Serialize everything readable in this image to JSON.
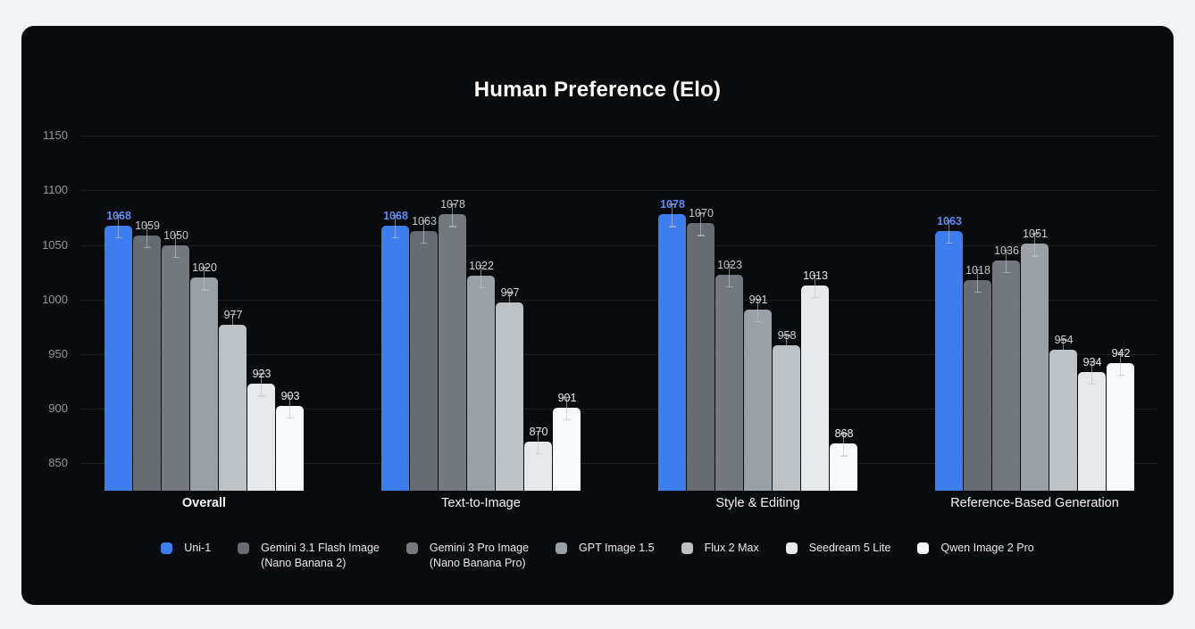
{
  "page": {
    "background": "#f2f3f5",
    "card_background": "#0a0b0d"
  },
  "chart_data": {
    "type": "bar",
    "title": "Human Preference (Elo)",
    "xlabel": "",
    "ylabel": "",
    "grid": true,
    "legend_position": "bottom",
    "error_bars": true,
    "y_ticks": [
      850,
      900,
      950,
      1000,
      1050,
      1100,
      1150
    ],
    "ylim": [
      825,
      1175
    ],
    "categories": [
      {
        "label": "Overall",
        "bold": true
      },
      {
        "label": "Text-to-Image",
        "bold": false
      },
      {
        "label": "Style & Editing",
        "bold": false
      },
      {
        "label": "Reference-Based Generation",
        "bold": false
      }
    ],
    "series": [
      {
        "name": "Uni-1",
        "legend_label": "Uni-1",
        "color": "#3C7EF0",
        "label_color": "#5C8CF5",
        "label_bold": true,
        "values": [
          1068,
          1068,
          1078,
          1063
        ]
      },
      {
        "name": "Gemini 3.1 Flash Image (Nano Banana 2)",
        "legend_label": "Gemini 3.1 Flash Image\n(Nano Banana 2)",
        "color": "#676C72",
        "label_color": "#c2c6ca",
        "label_bold": false,
        "values": [
          1059,
          1063,
          1070,
          1018
        ]
      },
      {
        "name": "Gemini 3 Pro Image (Nano Banana Pro)",
        "legend_label": "Gemini 3 Pro Image\n(Nano Banana Pro)",
        "color": "#74797F",
        "label_color": "#c2c6ca",
        "label_bold": false,
        "values": [
          1050,
          1078,
          1023,
          1036
        ]
      },
      {
        "name": "GPT Image 1.5",
        "legend_label": "GPT Image 1.5",
        "color": "#99A0A6",
        "label_color": "#ced2d6",
        "label_bold": false,
        "values": [
          1020,
          1022,
          991,
          1051
        ]
      },
      {
        "name": "Flux 2 Max",
        "legend_label": "Flux 2 Max",
        "color": "#BDC2C6",
        "label_color": "#ced2d6",
        "label_bold": false,
        "values": [
          977,
          997,
          958,
          954
        ]
      },
      {
        "name": "Seedream 5 Lite",
        "legend_label": "Seedream 5 Lite",
        "color": "#E6E8EA",
        "label_color": "#e3e5e7",
        "label_bold": false,
        "values": [
          923,
          870,
          1013,
          934
        ]
      },
      {
        "name": "Qwen Image 2 Pro",
        "legend_label": "Qwen Image 2 Pro",
        "color": "#F8F9FA",
        "label_color": "#eceeef",
        "label_bold": false,
        "values": [
          903,
          901,
          868,
          942
        ]
      }
    ]
  }
}
